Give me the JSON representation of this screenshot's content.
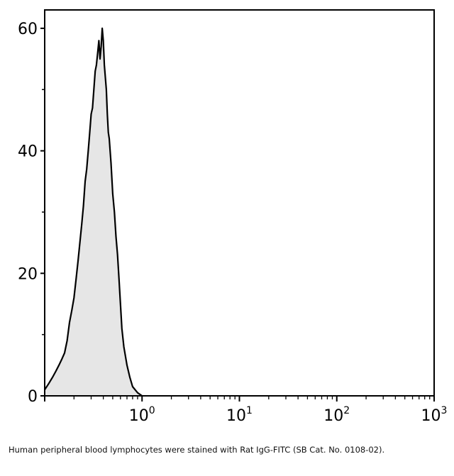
{
  "chart_data": {
    "type": "area",
    "title": "",
    "xlabel": "",
    "ylabel": "",
    "x_scale": "log",
    "xlim": [
      0.1,
      1000
    ],
    "ylim": [
      0,
      63
    ],
    "y_ticks_major": [
      0,
      20,
      40,
      60
    ],
    "y_ticks_minor": [
      10,
      30,
      50
    ],
    "x_ticks": [
      {
        "value": 1,
        "base": "10",
        "exp": "0"
      },
      {
        "value": 10,
        "base": "10",
        "exp": "1"
      },
      {
        "value": 100,
        "base": "10",
        "exp": "2"
      },
      {
        "value": 1000,
        "base": "10",
        "exp": "3"
      }
    ],
    "grid": false,
    "fill_color": "#e6e6e6",
    "line_color": "#000000",
    "series": [
      {
        "x": [
          0.1,
          0.11,
          0.12,
          0.13,
          0.14,
          0.15,
          0.16,
          0.17,
          0.18,
          0.19,
          0.2,
          0.21,
          0.22,
          0.23,
          0.24,
          0.25,
          0.26,
          0.27,
          0.28,
          0.29,
          0.3,
          0.31,
          0.32,
          0.33,
          0.34,
          0.35,
          0.36,
          0.37,
          0.38,
          0.39,
          0.4,
          0.41,
          0.42,
          0.43,
          0.44,
          0.45,
          0.46,
          0.48,
          0.5,
          0.52,
          0.54,
          0.56,
          0.58,
          0.6,
          0.62,
          0.65,
          0.7,
          0.75,
          0.8,
          0.9,
          1.0
        ],
        "y": [
          1,
          2,
          3,
          4,
          5,
          6,
          7,
          9,
          12,
          14,
          16,
          19,
          22,
          25,
          28,
          31,
          35,
          37,
          40,
          43,
          46,
          47,
          50,
          53,
          54,
          56,
          58,
          55,
          57,
          60,
          58,
          54,
          52,
          50,
          46,
          43,
          42,
          38,
          33,
          30,
          26,
          23,
          19,
          15,
          11,
          8,
          5,
          3,
          1.5,
          0.5,
          0
        ]
      }
    ]
  },
  "caption": "Human peripheral blood lymphocytes were stained with Rat IgG-FITC (SB Cat. No. 0108-02)."
}
